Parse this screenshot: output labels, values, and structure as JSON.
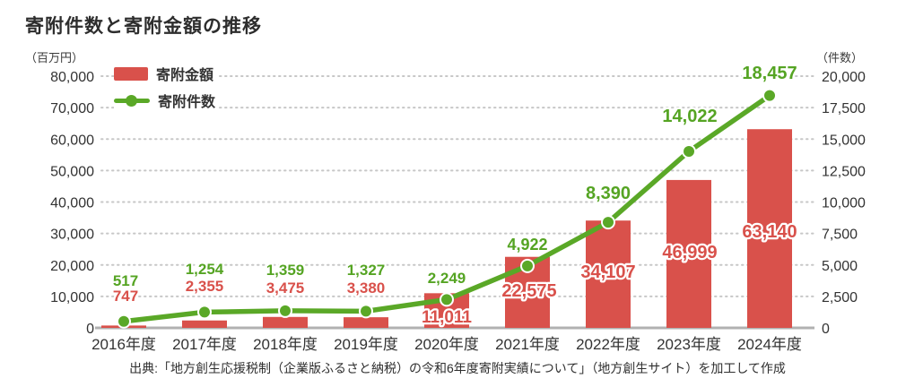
{
  "title": "寄附件数と寄附金額の推移",
  "legend": {
    "amount": "寄附金額",
    "count": "寄附件数"
  },
  "axes": {
    "left_unit": "（百万円）",
    "right_unit": "（件数）"
  },
  "source": "出典:「地方創生応援税制（企業版ふるさと納税）の令和6年度寄附実績について」（地方創生サイト）を加工して作成",
  "colors": {
    "bar": "#d9514b",
    "line": "#5aa827",
    "green_label": "#55a423",
    "red_label": "#d9514b",
    "grid": "#c7c7c7",
    "axis_line": "#b1b1b1",
    "text": "#333333"
  },
  "chart_data": {
    "type": "bar+line",
    "categories": [
      "2016年度",
      "2017年度",
      "2018年度",
      "2019年度",
      "2020年度",
      "2021年度",
      "2022年度",
      "2023年度",
      "2024年度"
    ],
    "series": [
      {
        "name": "寄附金額",
        "type": "bar",
        "axis": "left",
        "unit": "百万円",
        "values": [
          747,
          2355,
          3475,
          3380,
          11011,
          22575,
          34107,
          46999,
          63140
        ],
        "labels": [
          "747",
          "2,355",
          "3,475",
          "3,380",
          "11,011",
          "22,575",
          "34,107",
          "46,999",
          "63,140"
        ]
      },
      {
        "name": "寄附件数",
        "type": "line",
        "axis": "right",
        "unit": "件",
        "values": [
          517,
          1254,
          1359,
          1327,
          2249,
          4922,
          8390,
          14022,
          18457
        ],
        "labels": [
          "517",
          "1,254",
          "1,359",
          "1,327",
          "2,249",
          "4,922",
          "8,390",
          "14,022",
          "18,457"
        ]
      }
    ],
    "left_axis": {
      "label": "（百万円）",
      "min": 0,
      "max": 80000,
      "step": 10000,
      "ticks": [
        "0",
        "10,000",
        "20,000",
        "30,000",
        "40,000",
        "50,000",
        "60,000",
        "70,000",
        "80,000"
      ]
    },
    "right_axis": {
      "label": "（件数）",
      "min": 0,
      "max": 20000,
      "step": 2500,
      "ticks": [
        "0",
        "2,500",
        "5,000",
        "7,500",
        "10,000",
        "12,500",
        "15,000",
        "17,500",
        "20,000"
      ]
    },
    "grid": "dotted horizontal",
    "legend_position": "top-left"
  }
}
